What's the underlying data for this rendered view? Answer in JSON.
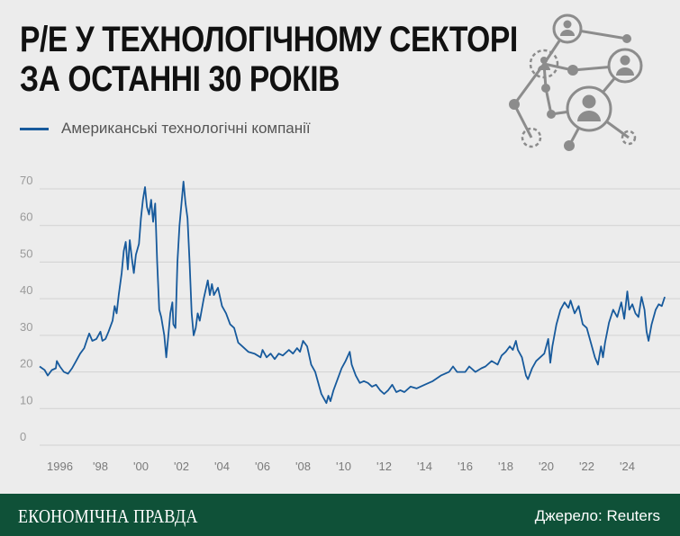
{
  "title": {
    "line1": "P/E У ТЕХНОЛОГІЧНОМУ СЕКТОРІ",
    "line2": "ЗА ОСТАННІ 30 РОКІВ"
  },
  "legend": {
    "label": "Американські технологічні компанії",
    "color": "#175a9c"
  },
  "decoration": {
    "icon": "network-people-icon",
    "color": "#8c8c8c"
  },
  "footer": {
    "brand": "ЕКОНОМІЧНА ПРАВДА",
    "source": "Джерело: Reuters",
    "background": "#0f5138"
  },
  "chart_data": {
    "type": "line",
    "title": "P/E У ТЕХНОЛОГІЧНОМУ СЕКТОРІ ЗА ОСТАННІ 30 РОКІВ",
    "xlabel": "",
    "ylabel": "",
    "xlim": [
      1995.0,
      2026.6
    ],
    "ylim": [
      0,
      70
    ],
    "yticks": [
      0,
      10,
      20,
      30,
      40,
      50,
      60,
      70
    ],
    "xticks": [
      {
        "value": 1996,
        "label": "1996"
      },
      {
        "value": 1998,
        "label": "'98"
      },
      {
        "value": 2000,
        "label": "'00"
      },
      {
        "value": 2002,
        "label": "'02"
      },
      {
        "value": 2004,
        "label": "'04"
      },
      {
        "value": 2006,
        "label": "'06"
      },
      {
        "value": 2008,
        "label": "'08"
      },
      {
        "value": 2010,
        "label": "'10"
      },
      {
        "value": 2012,
        "label": "'12"
      },
      {
        "value": 2014,
        "label": "'14"
      },
      {
        "value": 2016,
        "label": "'16"
      },
      {
        "value": 2018,
        "label": "'18"
      },
      {
        "value": 2020,
        "label": "'20"
      },
      {
        "value": 2022,
        "label": "'22"
      },
      {
        "value": 2024,
        "label": "'24"
      }
    ],
    "grid": true,
    "legend_position": "top-left",
    "series": [
      {
        "name": "Американські технологічні компанії",
        "color": "#175a9c",
        "points": [
          [
            1995.0,
            21.5
          ],
          [
            1995.25,
            20.5
          ],
          [
            1995.4,
            19.0
          ],
          [
            1995.6,
            20.5
          ],
          [
            1995.8,
            21.0
          ],
          [
            1995.85,
            23.0
          ],
          [
            1996.0,
            21.5
          ],
          [
            1996.2,
            20.0
          ],
          [
            1996.4,
            19.5
          ],
          [
            1996.6,
            21.0
          ],
          [
            1996.8,
            23.0
          ],
          [
            1997.0,
            25.0
          ],
          [
            1997.2,
            26.5
          ],
          [
            1997.35,
            29.0
          ],
          [
            1997.45,
            30.5
          ],
          [
            1997.6,
            28.5
          ],
          [
            1997.8,
            29.0
          ],
          [
            1998.0,
            31.0
          ],
          [
            1998.1,
            28.5
          ],
          [
            1998.25,
            29.0
          ],
          [
            1998.4,
            31.0
          ],
          [
            1998.6,
            34.0
          ],
          [
            1998.7,
            38.0
          ],
          [
            1998.8,
            36.0
          ],
          [
            1998.9,
            41.0
          ],
          [
            1999.05,
            47.0
          ],
          [
            1999.15,
            53.0
          ],
          [
            1999.25,
            55.5
          ],
          [
            1999.35,
            48.0
          ],
          [
            1999.45,
            56.0
          ],
          [
            1999.55,
            51.0
          ],
          [
            1999.65,
            47.0
          ],
          [
            1999.75,
            52.0
          ],
          [
            1999.9,
            55.0
          ],
          [
            2000.0,
            62.0
          ],
          [
            2000.1,
            67.0
          ],
          [
            2000.2,
            70.5
          ],
          [
            2000.3,
            65.0
          ],
          [
            2000.4,
            63.0
          ],
          [
            2000.5,
            67.0
          ],
          [
            2000.6,
            61.0
          ],
          [
            2000.7,
            66.0
          ],
          [
            2000.8,
            50.0
          ],
          [
            2000.9,
            37.0
          ],
          [
            2001.0,
            35.0
          ],
          [
            2001.15,
            30.0
          ],
          [
            2001.25,
            24.0
          ],
          [
            2001.35,
            30.0
          ],
          [
            2001.45,
            36.0
          ],
          [
            2001.55,
            39.0
          ],
          [
            2001.6,
            33.0
          ],
          [
            2001.7,
            32.0
          ],
          [
            2001.8,
            50.0
          ],
          [
            2001.9,
            60.0
          ],
          [
            2002.0,
            66.0
          ],
          [
            2002.1,
            72.0
          ],
          [
            2002.2,
            66.0
          ],
          [
            2002.3,
            62.0
          ],
          [
            2002.4,
            50.0
          ],
          [
            2002.5,
            36.0
          ],
          [
            2002.6,
            30.0
          ],
          [
            2002.7,
            32.0
          ],
          [
            2002.8,
            36.0
          ],
          [
            2002.9,
            34.0
          ],
          [
            2003.1,
            40.0
          ],
          [
            2003.3,
            45.0
          ],
          [
            2003.4,
            41.0
          ],
          [
            2003.5,
            44.0
          ],
          [
            2003.6,
            41.0
          ],
          [
            2003.8,
            43.0
          ],
          [
            2004.0,
            38.0
          ],
          [
            2004.2,
            36.0
          ],
          [
            2004.4,
            33.0
          ],
          [
            2004.6,
            32.0
          ],
          [
            2004.8,
            28.0
          ],
          [
            2005.0,
            27.0
          ],
          [
            2005.3,
            25.5
          ],
          [
            2005.6,
            25.0
          ],
          [
            2005.9,
            24.0
          ],
          [
            2006.0,
            26.0
          ],
          [
            2006.2,
            24.0
          ],
          [
            2006.4,
            25.0
          ],
          [
            2006.6,
            23.5
          ],
          [
            2006.8,
            25.0
          ],
          [
            2007.0,
            24.5
          ],
          [
            2007.3,
            26.0
          ],
          [
            2007.5,
            25.0
          ],
          [
            2007.7,
            26.5
          ],
          [
            2007.85,
            25.5
          ],
          [
            2008.0,
            28.5
          ],
          [
            2008.2,
            27.0
          ],
          [
            2008.4,
            22.0
          ],
          [
            2008.6,
            20.0
          ],
          [
            2008.8,
            16.0
          ],
          [
            2008.9,
            14.0
          ],
          [
            2009.05,
            12.5
          ],
          [
            2009.15,
            11.5
          ],
          [
            2009.25,
            13.5
          ],
          [
            2009.35,
            12.0
          ],
          [
            2009.5,
            15.0
          ],
          [
            2009.7,
            18.0
          ],
          [
            2009.9,
            21.0
          ],
          [
            2010.1,
            23.0
          ],
          [
            2010.3,
            25.5
          ],
          [
            2010.4,
            22.0
          ],
          [
            2010.6,
            19.0
          ],
          [
            2010.8,
            17.0
          ],
          [
            2011.0,
            17.5
          ],
          [
            2011.2,
            17.0
          ],
          [
            2011.4,
            16.0
          ],
          [
            2011.6,
            16.5
          ],
          [
            2011.8,
            15.0
          ],
          [
            2012.0,
            14.0
          ],
          [
            2012.2,
            15.0
          ],
          [
            2012.4,
            16.5
          ],
          [
            2012.6,
            14.5
          ],
          [
            2012.8,
            15.0
          ],
          [
            2013.0,
            14.5
          ],
          [
            2013.3,
            16.0
          ],
          [
            2013.6,
            15.5
          ],
          [
            2014.0,
            16.5
          ],
          [
            2014.4,
            17.5
          ],
          [
            2014.8,
            19.0
          ],
          [
            2015.2,
            20.0
          ],
          [
            2015.4,
            21.5
          ],
          [
            2015.6,
            20.0
          ],
          [
            2016.0,
            20.0
          ],
          [
            2016.2,
            21.5
          ],
          [
            2016.5,
            20.0
          ],
          [
            2016.8,
            21.0
          ],
          [
            2017.0,
            21.5
          ],
          [
            2017.3,
            23.0
          ],
          [
            2017.6,
            22.0
          ],
          [
            2017.8,
            24.5
          ],
          [
            2018.0,
            25.5
          ],
          [
            2018.2,
            27.0
          ],
          [
            2018.35,
            26.0
          ],
          [
            2018.5,
            28.5
          ],
          [
            2018.6,
            26.0
          ],
          [
            2018.8,
            24.0
          ],
          [
            2019.0,
            19.0
          ],
          [
            2019.1,
            18.0
          ],
          [
            2019.3,
            21.0
          ],
          [
            2019.5,
            23.0
          ],
          [
            2019.7,
            24.0
          ],
          [
            2019.9,
            25.0
          ],
          [
            2020.1,
            29.0
          ],
          [
            2020.2,
            22.5
          ],
          [
            2020.3,
            27.0
          ],
          [
            2020.5,
            33.0
          ],
          [
            2020.7,
            37.0
          ],
          [
            2020.9,
            39.0
          ],
          [
            2021.1,
            37.5
          ],
          [
            2021.2,
            39.5
          ],
          [
            2021.4,
            36.0
          ],
          [
            2021.6,
            38.0
          ],
          [
            2021.8,
            33.0
          ],
          [
            2022.0,
            32.0
          ],
          [
            2022.2,
            28.0
          ],
          [
            2022.4,
            24.0
          ],
          [
            2022.55,
            22.0
          ],
          [
            2022.7,
            27.0
          ],
          [
            2022.8,
            24.0
          ],
          [
            2022.9,
            28.0
          ],
          [
            2023.1,
            33.5
          ],
          [
            2023.3,
            37.0
          ],
          [
            2023.5,
            35.0
          ],
          [
            2023.7,
            39.0
          ],
          [
            2023.85,
            34.5
          ],
          [
            2024.0,
            42.0
          ],
          [
            2024.1,
            37.0
          ],
          [
            2024.25,
            38.5
          ],
          [
            2024.4,
            36.0
          ],
          [
            2024.55,
            35.0
          ],
          [
            2024.7,
            40.5
          ],
          [
            2024.85,
            37.0
          ],
          [
            2024.95,
            31.0
          ],
          [
            2025.05,
            28.5
          ],
          [
            2025.2,
            33.0
          ],
          [
            2025.4,
            37.0
          ],
          [
            2025.55,
            38.5
          ],
          [
            2025.7,
            38.0
          ],
          [
            2025.85,
            40.5
          ]
        ]
      }
    ]
  }
}
